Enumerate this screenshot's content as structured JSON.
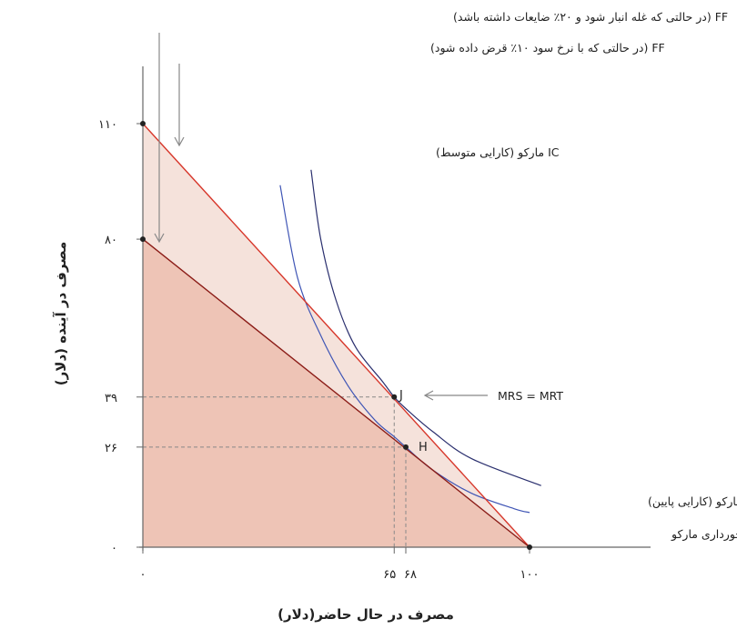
{
  "chart_data": {
    "type": "line",
    "xlabel": "مصرف در حال حاضر(دلار)",
    "ylabel": "مصرف در آینده (دلار)",
    "xlim": [
      0,
      130
    ],
    "ylim": [
      0,
      125
    ],
    "x_ticks": [
      {
        "value": 0,
        "label": "۰"
      },
      {
        "value": 65,
        "label": "۶۵"
      },
      {
        "value": 68,
        "label": "۶۸"
      },
      {
        "value": 100,
        "label": "۱۰۰"
      }
    ],
    "y_ticks": [
      {
        "value": 0,
        "label": "۰"
      },
      {
        "value": 26,
        "label": "۲۶"
      },
      {
        "value": 39,
        "label": "۳۹"
      },
      {
        "value": 80,
        "label": "۸۰"
      },
      {
        "value": 110,
        "label": "۱۱۰"
      }
    ],
    "series": [
      {
        "name": "FF (در حالتی که با نرخ سود ۱۰٪ قرض داده شود)",
        "color": "#d7372b",
        "points": [
          [
            0,
            110
          ],
          [
            100,
            0
          ]
        ]
      },
      {
        "name": "FF (در حالتی که غله انبار شود و ۲۰٪ ضایعات داشته باشد)",
        "color": "#8b1c17",
        "points": [
          [
            0,
            80
          ],
          [
            100,
            0
          ]
        ]
      }
    ],
    "indifference_curves": [
      {
        "name": "IC مارکو (کارایی متوسط)",
        "color": "#2a2f6e",
        "points": [
          [
            43.5,
            98
          ],
          [
            46,
            80
          ],
          [
            50,
            64
          ],
          [
            55,
            52
          ],
          [
            62,
            43
          ],
          [
            65,
            39
          ],
          [
            68,
            36
          ],
          [
            75,
            30
          ],
          [
            85,
            23
          ],
          [
            103,
            16
          ]
        ]
      },
      {
        "name": "IC مارکو (کارایی پایین)",
        "color": "#3f55b5",
        "points": [
          [
            35.5,
            94
          ],
          [
            40,
            70
          ],
          [
            46,
            55
          ],
          [
            53,
            42
          ],
          [
            60,
            33
          ],
          [
            65,
            28.7
          ],
          [
            68,
            26
          ],
          [
            75,
            20
          ],
          [
            85,
            14
          ],
          [
            96,
            10
          ],
          [
            100,
            9
          ]
        ]
      }
    ],
    "points": [
      {
        "label": "J",
        "x": 65,
        "y": 39
      },
      {
        "label": "H",
        "x": 68,
        "y": 26
      }
    ],
    "endpoint_marker": [
      {
        "x": 0,
        "y": 110
      },
      {
        "x": 0,
        "y": 80
      },
      {
        "x": 100,
        "y": 0
      }
    ],
    "annotations": {
      "ff_storage": "FF (در حالتی که غله انبار شود و ۲۰٪ ضایعات داشته باشد)",
      "ff_lending": "FF (در حالتی که با نرخ سود ۱۰٪ قرض داده شود)",
      "ic_medium": "IC مارکو (کارایی متوسط)",
      "ic_low": "IC مارکو (کارایی پایین)",
      "mrs_mrt": "MRS = MRT",
      "endowment": "برخورداری مارکو"
    },
    "colors": {
      "lending_fill": "#f5e2db",
      "storage_fill": "#eec4b6",
      "lending_line": "#d7372b",
      "storage_line": "#8b1c17",
      "axis": "#666666",
      "guide": "#888888"
    }
  }
}
